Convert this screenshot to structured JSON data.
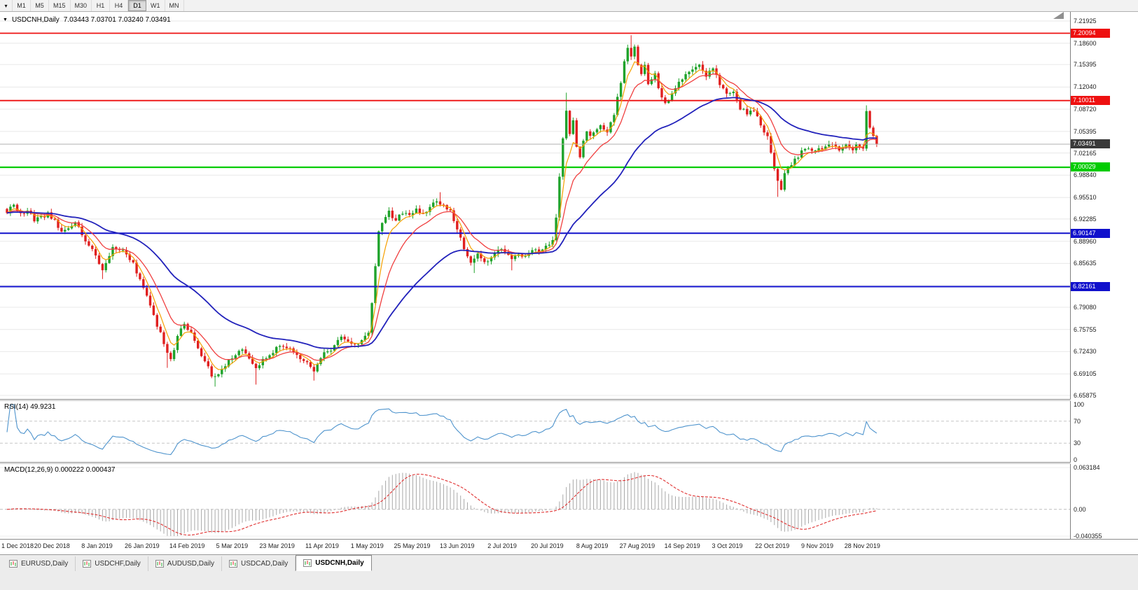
{
  "toolbar": {
    "dropdown_icon": "▾",
    "timeframes": [
      "M1",
      "M5",
      "M15",
      "M30",
      "H1",
      "H4",
      "D1",
      "W1",
      "MN"
    ],
    "active_timeframe": "D1"
  },
  "chart": {
    "dropdown_icon": "▼",
    "title_symbol": "USDCNH,Daily",
    "title_ohlc": "7.03443 7.03701 7.03240 7.03491"
  },
  "chart_data": {
    "type": "candlestick",
    "symbol": "USDCNH",
    "timeframe": "Daily",
    "ohlc": {
      "open": 7.03443,
      "high": 7.03701,
      "low": 7.0324,
      "close": 7.03491
    },
    "price_axis_labels": [
      "7.21925",
      "7.18600",
      "7.15395",
      "7.12040",
      "7.08720",
      "7.05395",
      "7.02165",
      "6.98840",
      "6.95510",
      "6.92285",
      "6.88960",
      "6.85635",
      "6.82410",
      "6.79080",
      "6.75755",
      "6.72430",
      "6.69105",
      "6.65875"
    ],
    "date_labels": [
      "1 Dec 2018",
      "20 Dec 2018",
      "8 Jan 2019",
      "26 Jan 2019",
      "14 Feb 2019",
      "5 Mar 2019",
      "23 Mar 2019",
      "11 Apr 2019",
      "1 May 2019",
      "25 May 2019",
      "13 Jun 2019",
      "2 Jul 2019",
      "20 Jul 2019",
      "8 Aug 2019",
      "27 Aug 2019",
      "14 Sep 2019",
      "3 Oct 2019",
      "22 Oct 2019",
      "9 Nov 2019",
      "28 Nov 2019"
    ],
    "levels": [
      {
        "price": 7.20094,
        "label": "7.20094",
        "color": "#ee1010",
        "width": 1.8
      },
      {
        "price": 7.10011,
        "label": "7.10011",
        "color": "#ee1010",
        "width": 1.8
      },
      {
        "price": 7.00029,
        "label": "7.00029",
        "color": "#00cc00",
        "width": 2.2
      },
      {
        "price": 6.90147,
        "label": "6.90147",
        "color": "#1111cc",
        "width": 2
      },
      {
        "price": 6.82161,
        "label": "6.82161",
        "color": "#1111cc",
        "width": 2
      }
    ],
    "current_price": {
      "value": 7.03491,
      "label": "7.03491",
      "bg": "#3a3a3a"
    },
    "candles_count": 256,
    "price_path": [
      [
        0,
        6.932
      ],
      [
        2,
        6.944
      ],
      [
        4,
        6.928
      ],
      [
        6,
        6.938
      ],
      [
        8,
        6.918
      ],
      [
        10,
        6.926
      ],
      [
        12,
        6.93
      ],
      [
        14,
        6.922
      ],
      [
        16,
        6.903
      ],
      [
        18,
        6.912
      ],
      [
        20,
        6.918
      ],
      [
        22,
        6.898
      ],
      [
        24,
        6.885
      ],
      [
        26,
        6.868
      ],
      [
        28,
        6.848
      ],
      [
        30,
        6.87
      ],
      [
        31,
        6.882
      ],
      [
        33,
        6.878
      ],
      [
        35,
        6.87
      ],
      [
        37,
        6.856
      ],
      [
        39,
        6.832
      ],
      [
        41,
        6.805
      ],
      [
        43,
        6.778
      ],
      [
        45,
        6.752
      ],
      [
        47,
        6.722
      ],
      [
        48,
        6.712
      ],
      [
        49,
        6.728
      ],
      [
        50,
        6.748
      ],
      [
        52,
        6.765
      ],
      [
        54,
        6.755
      ],
      [
        56,
        6.732
      ],
      [
        58,
        6.708
      ],
      [
        60,
        6.69
      ],
      [
        61,
        6.684
      ],
      [
        63,
        6.698
      ],
      [
        65,
        6.712
      ],
      [
        67,
        6.722
      ],
      [
        69,
        6.728
      ],
      [
        71,
        6.715
      ],
      [
        73,
        6.698
      ],
      [
        75,
        6.71
      ],
      [
        77,
        6.722
      ],
      [
        79,
        6.728
      ],
      [
        81,
        6.732
      ],
      [
        83,
        6.728
      ],
      [
        85,
        6.718
      ],
      [
        87,
        6.712
      ],
      [
        89,
        6.702
      ],
      [
        90,
        6.695
      ],
      [
        92,
        6.715
      ],
      [
        94,
        6.726
      ],
      [
        96,
        6.732
      ],
      [
        98,
        6.745
      ],
      [
        100,
        6.74
      ],
      [
        102,
        6.735
      ],
      [
        104,
        6.74
      ],
      [
        106,
        6.752
      ],
      [
        107,
        6.8
      ],
      [
        108,
        6.855
      ],
      [
        109,
        6.902
      ],
      [
        110,
        6.92
      ],
      [
        112,
        6.933
      ],
      [
        114,
        6.92
      ],
      [
        116,
        6.932
      ],
      [
        118,
        6.928
      ],
      [
        120,
        6.935
      ],
      [
        122,
        6.928
      ],
      [
        124,
        6.94
      ],
      [
        126,
        6.95
      ],
      [
        128,
        6.945
      ],
      [
        130,
        6.935
      ],
      [
        132,
        6.908
      ],
      [
        134,
        6.875
      ],
      [
        136,
        6.856
      ],
      [
        138,
        6.868
      ],
      [
        140,
        6.856
      ],
      [
        142,
        6.868
      ],
      [
        144,
        6.877
      ],
      [
        146,
        6.872
      ],
      [
        148,
        6.86
      ],
      [
        150,
        6.872
      ],
      [
        152,
        6.868
      ],
      [
        154,
        6.874
      ],
      [
        156,
        6.877
      ],
      [
        158,
        6.88
      ],
      [
        160,
        6.892
      ],
      [
        161,
        6.925
      ],
      [
        162,
        6.985
      ],
      [
        163,
        7.045
      ],
      [
        164,
        7.082
      ],
      [
        165,
        7.048
      ],
      [
        166,
        7.072
      ],
      [
        167,
        7.03
      ],
      [
        168,
        7.018
      ],
      [
        169,
        7.042
      ],
      [
        170,
        7.052
      ],
      [
        171,
        7.045
      ],
      [
        172,
        7.05
      ],
      [
        174,
        7.06
      ],
      [
        176,
        7.055
      ],
      [
        178,
        7.082
      ],
      [
        180,
        7.128
      ],
      [
        181,
        7.158
      ],
      [
        182,
        7.18
      ],
      [
        183,
        7.168
      ],
      [
        184,
        7.178
      ],
      [
        185,
        7.152
      ],
      [
        186,
        7.138
      ],
      [
        187,
        7.152
      ],
      [
        188,
        7.128
      ],
      [
        190,
        7.138
      ],
      [
        191,
        7.118
      ],
      [
        193,
        7.095
      ],
      [
        195,
        7.11
      ],
      [
        197,
        7.128
      ],
      [
        199,
        7.142
      ],
      [
        201,
        7.15
      ],
      [
        203,
        7.152
      ],
      [
        205,
        7.138
      ],
      [
        207,
        7.146
      ],
      [
        209,
        7.126
      ],
      [
        211,
        7.108
      ],
      [
        213,
        7.116
      ],
      [
        215,
        7.09
      ],
      [
        217,
        7.08
      ],
      [
        219,
        7.086
      ],
      [
        221,
        7.062
      ],
      [
        223,
        7.048
      ],
      [
        224,
        7.022
      ],
      [
        225,
        6.998
      ],
      [
        226,
        6.982
      ],
      [
        227,
        6.97
      ],
      [
        228,
        6.992
      ],
      [
        230,
        7.006
      ],
      [
        232,
        7.016
      ],
      [
        234,
        7.028
      ],
      [
        236,
        7.022
      ],
      [
        238,
        7.032
      ],
      [
        240,
        7.028
      ],
      [
        242,
        7.036
      ],
      [
        244,
        7.028
      ],
      [
        246,
        7.033
      ],
      [
        248,
        7.028
      ],
      [
        250,
        7.034
      ],
      [
        251,
        7.03
      ],
      [
        252,
        7.082
      ],
      [
        253,
        7.06
      ],
      [
        254,
        7.044
      ],
      [
        255,
        7.035
      ]
    ],
    "spikes": [
      {
        "i": 28,
        "low": 6.833
      },
      {
        "i": 47,
        "low": 6.7
      },
      {
        "i": 61,
        "low": 6.672
      },
      {
        "i": 73,
        "low": 6.675
      },
      {
        "i": 90,
        "low": 6.681
      },
      {
        "i": 127,
        "high": 6.963
      },
      {
        "i": 137,
        "low": 6.842
      },
      {
        "i": 148,
        "low": 6.846
      },
      {
        "i": 164,
        "high": 7.112
      },
      {
        "i": 183,
        "high": 7.198
      },
      {
        "i": 226,
        "low": 6.956
      },
      {
        "i": 252,
        "high": 7.093
      }
    ],
    "moving_averages": [
      {
        "period": 5,
        "color": "#f5a000",
        "width": 1.2
      },
      {
        "period": 12,
        "color": "#f04040",
        "width": 1.3
      },
      {
        "period": 40,
        "color": "#2222bb",
        "width": 1.8
      }
    ],
    "colors": {
      "up": "#1fa32b",
      "down": "#e02020",
      "grid": "#e8e8e8",
      "bid_line": "#b0b0b0"
    },
    "rsi": {
      "label": "RSI(14) 49.9231",
      "period": 14,
      "value": 49.9231,
      "color": "#4f94cd",
      "levels": [
        70,
        30
      ],
      "axis_labels": [
        "100",
        "70",
        "30",
        "0"
      ]
    },
    "macd": {
      "label": "MACD(12,26,9) 0.000222 0.000437",
      "fast": 12,
      "slow": 26,
      "signal": 9,
      "value": 0.000222,
      "signal_value": 0.000437,
      "hist_color": "#a8a8a8",
      "signal_color": "#e03030",
      "axis_labels": [
        "0.063184",
        "0.00",
        "-0.040355"
      ],
      "scale_max": 0.063184,
      "scale_min": -0.040355
    }
  },
  "tabs": {
    "items": [
      {
        "label": "EURUSD,Daily",
        "active": false
      },
      {
        "label": "USDCHF,Daily",
        "active": false
      },
      {
        "label": "AUDUSD,Daily",
        "active": false
      },
      {
        "label": "USDCAD,Daily",
        "active": false
      },
      {
        "label": "USDCNH,Daily",
        "active": true
      }
    ]
  }
}
